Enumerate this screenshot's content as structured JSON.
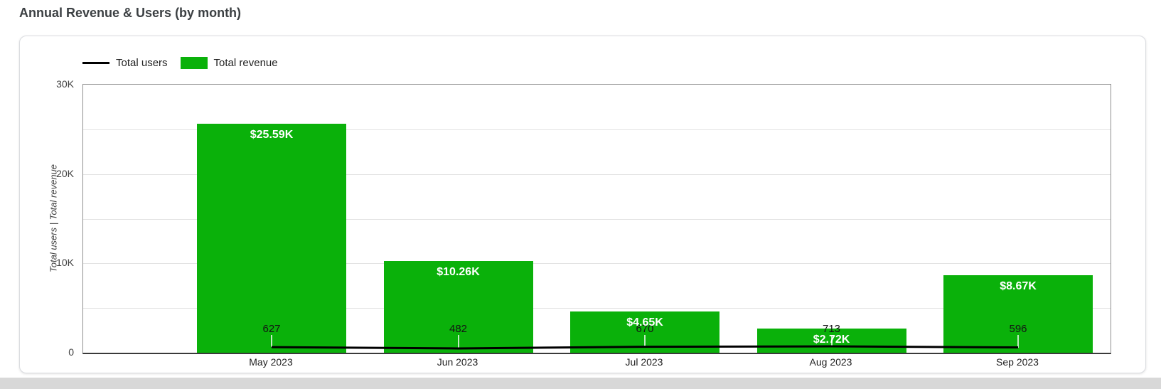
{
  "title": "Annual Revenue & Users (by month)",
  "chart_data": {
    "type": "combo",
    "title": "Annual Revenue & Users (by month)",
    "categories": [
      "May 2023",
      "Jun 2023",
      "Jul 2023",
      "Aug 2023",
      "Sep 2023"
    ],
    "series": [
      {
        "name": "Total users",
        "type": "line",
        "color": "#000000",
        "values": [
          627,
          482,
          670,
          713,
          596
        ],
        "labels": [
          "627",
          "482",
          "670",
          "713",
          "596"
        ]
      },
      {
        "name": "Total revenue",
        "type": "bar",
        "color": "#0ab10a",
        "values": [
          25590,
          10260,
          4650,
          2720,
          8670
        ],
        "labels": [
          "$25.59K",
          "$10.26K",
          "$4.65K",
          "$2.72K",
          "$8.67K"
        ]
      }
    ],
    "xlabel": "",
    "ylabel": "Total users | Total revenue",
    "ylim": [
      0,
      30000
    ],
    "yticks": [
      {
        "value": 0,
        "label": "0"
      },
      {
        "value": 10000,
        "label": "10K"
      },
      {
        "value": 20000,
        "label": "20K"
      },
      {
        "value": 30000,
        "label": "30K"
      }
    ],
    "grid": true,
    "legend_position": "top-left"
  }
}
